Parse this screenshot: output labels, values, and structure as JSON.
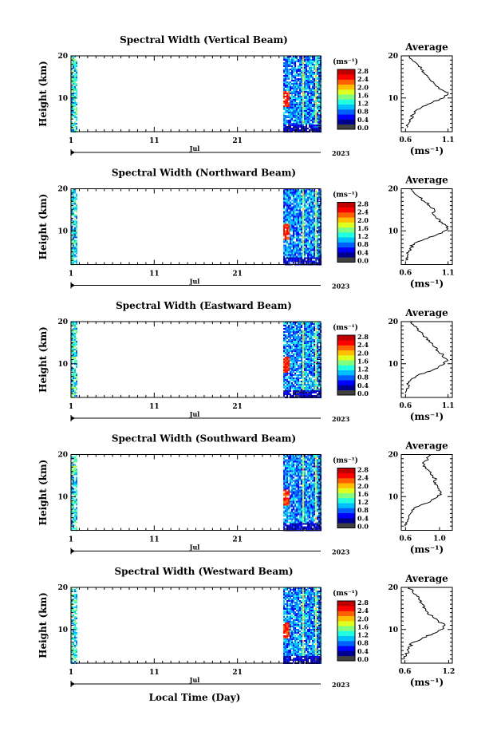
{
  "figure": {
    "xlabel": "Local Time (Day)",
    "colorbar_unit": "(ms⁻¹)",
    "colorbar_ticks": [
      "0.0",
      "0.4",
      "0.8",
      "1.2",
      "1.6",
      "2.0",
      "2.4",
      "2.8"
    ],
    "colormap": [
      "#404040",
      "#00008f",
      "#0000ff",
      "#0060ff",
      "#00bfff",
      "#20ffdf",
      "#80ff80",
      "#dfff20",
      "#ffbf00",
      "#ff6000",
      "#ff0000",
      "#bf0000"
    ],
    "month_label": "Jul",
    "year_label": "2023",
    "x_tick_labels": [
      "1",
      "11",
      "21"
    ],
    "avg_title": "Average",
    "avg_xlabel": "(ms⁻¹)"
  },
  "chart_data": [
    {
      "type": "heatmap",
      "title": "Spectral Width (Vertical Beam)",
      "ylabel": "Height (km)",
      "xlabel": "Local Time (Day)",
      "x_range_days": [
        1,
        31
      ],
      "ylim_km": [
        2,
        20
      ],
      "y_ticks": [
        10,
        20
      ],
      "value_range": [
        0.0,
        2.8
      ],
      "data_segments_days": [
        [
          1.0,
          1.6
        ],
        [
          26.5,
          31.0
        ]
      ],
      "average_profile": {
        "title": "Average",
        "xlabel": "(ms⁻¹)",
        "xlim": [
          0.55,
          1.15
        ],
        "x_tick_labels": [
          "0.6",
          "1.1"
        ],
        "height_km": [
          3,
          4,
          5,
          6,
          7,
          8,
          9,
          10,
          11,
          12,
          13,
          14,
          15,
          16,
          17,
          18,
          19,
          20
        ],
        "width_ms": [
          0.62,
          0.64,
          0.66,
          0.68,
          0.72,
          0.8,
          0.92,
          1.05,
          1.1,
          1.02,
          0.95,
          0.9,
          0.86,
          0.82,
          0.78,
          0.74,
          0.68,
          0.64
        ]
      }
    },
    {
      "type": "heatmap",
      "title": "Spectral Width (Northward Beam)",
      "ylabel": "Height (km)",
      "xlabel": "Local Time (Day)",
      "x_range_days": [
        1,
        31
      ],
      "ylim_km": [
        2,
        20
      ],
      "y_ticks": [
        10,
        20
      ],
      "value_range": [
        0.0,
        2.8
      ],
      "data_segments_days": [
        [
          1.0,
          1.6
        ],
        [
          26.5,
          31.0
        ]
      ],
      "average_profile": {
        "title": "Average",
        "xlabel": "(ms⁻¹)",
        "xlim": [
          0.55,
          1.15
        ],
        "x_tick_labels": [
          "0.6",
          "1.1"
        ],
        "height_km": [
          3,
          4,
          5,
          6,
          7,
          8,
          9,
          10,
          11,
          12,
          13,
          14,
          15,
          16,
          17,
          18,
          19,
          20
        ],
        "width_ms": [
          0.6,
          0.62,
          0.64,
          0.66,
          0.7,
          0.82,
          0.96,
          1.06,
          1.1,
          1.03,
          0.96,
          0.92,
          0.94,
          0.88,
          0.82,
          0.76,
          0.7,
          0.66
        ]
      }
    },
    {
      "type": "heatmap",
      "title": "Spectral Width (Eastward Beam)",
      "ylabel": "Height (km)",
      "xlabel": "Local Time (Day)",
      "x_range_days": [
        1,
        31
      ],
      "ylim_km": [
        2,
        20
      ],
      "y_ticks": [
        10,
        20
      ],
      "value_range": [
        0.0,
        2.8
      ],
      "data_segments_days": [
        [
          1.0,
          1.6
        ],
        [
          26.5,
          31.0
        ]
      ],
      "average_profile": {
        "title": "Average",
        "xlabel": "(ms⁻¹)",
        "xlim": [
          0.55,
          1.15
        ],
        "x_tick_labels": [
          "0.6",
          "1.1"
        ],
        "height_km": [
          3,
          4,
          5,
          6,
          7,
          8,
          9,
          10,
          11,
          12,
          13,
          14,
          15,
          16,
          17,
          18,
          19,
          20
        ],
        "width_ms": [
          0.6,
          0.61,
          0.63,
          0.66,
          0.72,
          0.84,
          0.98,
          1.06,
          1.09,
          1.04,
          0.98,
          0.94,
          0.9,
          0.86,
          0.8,
          0.74,
          0.7,
          0.68
        ]
      }
    },
    {
      "type": "heatmap",
      "title": "Spectral Width (Southward Beam)",
      "ylabel": "Height (km)",
      "xlabel": "Local Time (Day)",
      "x_range_days": [
        1,
        31
      ],
      "ylim_km": [
        2,
        20
      ],
      "y_ticks": [
        10,
        20
      ],
      "value_range": [
        0.0,
        2.8
      ],
      "data_segments_days": [
        [
          1.0,
          1.6
        ],
        [
          26.5,
          31.0
        ]
      ],
      "average_profile": {
        "title": "Average",
        "xlabel": "(ms⁻¹)",
        "xlim": [
          0.55,
          1.15
        ],
        "x_tick_labels": [
          "0.6",
          "1.0"
        ],
        "height_km": [
          3,
          4,
          5,
          6,
          7,
          8,
          9,
          10,
          11,
          12,
          13,
          14,
          15,
          16,
          17,
          18,
          19,
          20
        ],
        "width_ms": [
          0.6,
          0.62,
          0.64,
          0.66,
          0.7,
          0.78,
          0.9,
          0.98,
          1.02,
          0.98,
          0.94,
          0.96,
          0.92,
          0.88,
          0.84,
          0.8,
          0.86,
          0.9
        ]
      }
    },
    {
      "type": "heatmap",
      "title": "Spectral Width (Westward Beam)",
      "ylabel": "Height (km)",
      "xlabel": "Local Time (Day)",
      "x_range_days": [
        1,
        31
      ],
      "ylim_km": [
        2,
        20
      ],
      "y_ticks": [
        10,
        20
      ],
      "value_range": [
        0.0,
        2.8
      ],
      "data_segments_days": [
        [
          1.0,
          1.6
        ],
        [
          26.5,
          31.0
        ]
      ],
      "average_profile": {
        "title": "Average",
        "xlabel": "(ms⁻¹)",
        "xlim": [
          0.55,
          1.25
        ],
        "x_tick_labels": [
          "0.6",
          "1.2"
        ],
        "height_km": [
          3,
          4,
          5,
          6,
          7,
          8,
          9,
          10,
          11,
          12,
          13,
          14,
          15,
          16,
          17,
          18,
          19,
          20
        ],
        "width_ms": [
          0.6,
          0.62,
          0.64,
          0.66,
          0.72,
          0.84,
          0.98,
          1.1,
          1.15,
          1.06,
          0.98,
          0.92,
          0.88,
          0.84,
          0.8,
          0.76,
          0.7,
          0.66
        ]
      }
    }
  ]
}
